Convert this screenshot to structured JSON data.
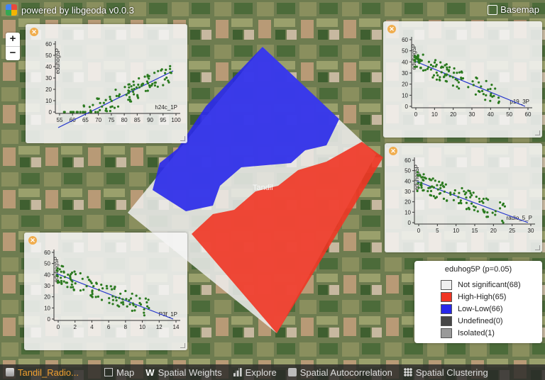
{
  "app": {
    "title": "powered by libgeoda v0.0.3",
    "basemap_label": "Basemap"
  },
  "zoom": {
    "in_label": "+",
    "out_label": "−"
  },
  "colors": {
    "high_high": "#f03524",
    "low_low": "#2828ea",
    "not_significant": "#eeeeee",
    "undefined": "#464646",
    "isolated": "#999999",
    "points": "#2b7a1f",
    "fit_line": "#2233cc"
  },
  "map": {
    "city_label": "Tandil"
  },
  "plots": [
    {
      "close_label": "✕",
      "x_label": "h24c_1P",
      "y_label": "eduhog5P",
      "x_ticks": [
        "55",
        "60",
        "65",
        "70",
        "75",
        "80",
        "85",
        "90",
        "95",
        "100"
      ],
      "y_ticks": [
        "0",
        "10",
        "20",
        "30",
        "40",
        "50",
        "60"
      ]
    },
    {
      "close_label": "✕",
      "x_label": "p19_3P",
      "y_label": "eduhog5P",
      "x_ticks": [
        "0",
        "10",
        "20",
        "30",
        "40",
        "50",
        "60"
      ],
      "y_ticks": [
        "0",
        "10",
        "20",
        "30",
        "40",
        "50",
        "60"
      ]
    },
    {
      "close_label": "✕",
      "x_label": "radio_5_P",
      "y_label": "eduhog5P",
      "x_ticks": [
        "0",
        "5",
        "10",
        "15",
        "20",
        "25",
        "30"
      ],
      "y_ticks": [
        "0",
        "10",
        "20",
        "30",
        "40",
        "50",
        "60"
      ]
    },
    {
      "close_label": "✕",
      "x_label": "P3f_1P",
      "y_label": "eduhog5P",
      "x_ticks": [
        "0",
        "2",
        "4",
        "6",
        "8",
        "10",
        "12",
        "14"
      ],
      "y_ticks": [
        "0",
        "10",
        "20",
        "30",
        "40",
        "50",
        "60"
      ]
    }
  ],
  "legend": {
    "title": "eduhog5P (p=0.05)",
    "items": [
      {
        "label": "Not significant(68)",
        "color": "#eeeeee"
      },
      {
        "label": "High-High(65)",
        "color": "#f03524"
      },
      {
        "label": "Low-Low(66)",
        "color": "#2828ea"
      },
      {
        "label": "Undefined(0)",
        "color": "#464646"
      },
      {
        "label": "Isolated(1)",
        "color": "#999999"
      }
    ]
  },
  "bottom": {
    "dataset": "Tandil_Radio...",
    "map": "Map",
    "weights": "Spatial Weights",
    "explore": "Explore",
    "autocorr": "Spatial Autocorrelation",
    "clustering": "Spatial Clustering"
  }
}
